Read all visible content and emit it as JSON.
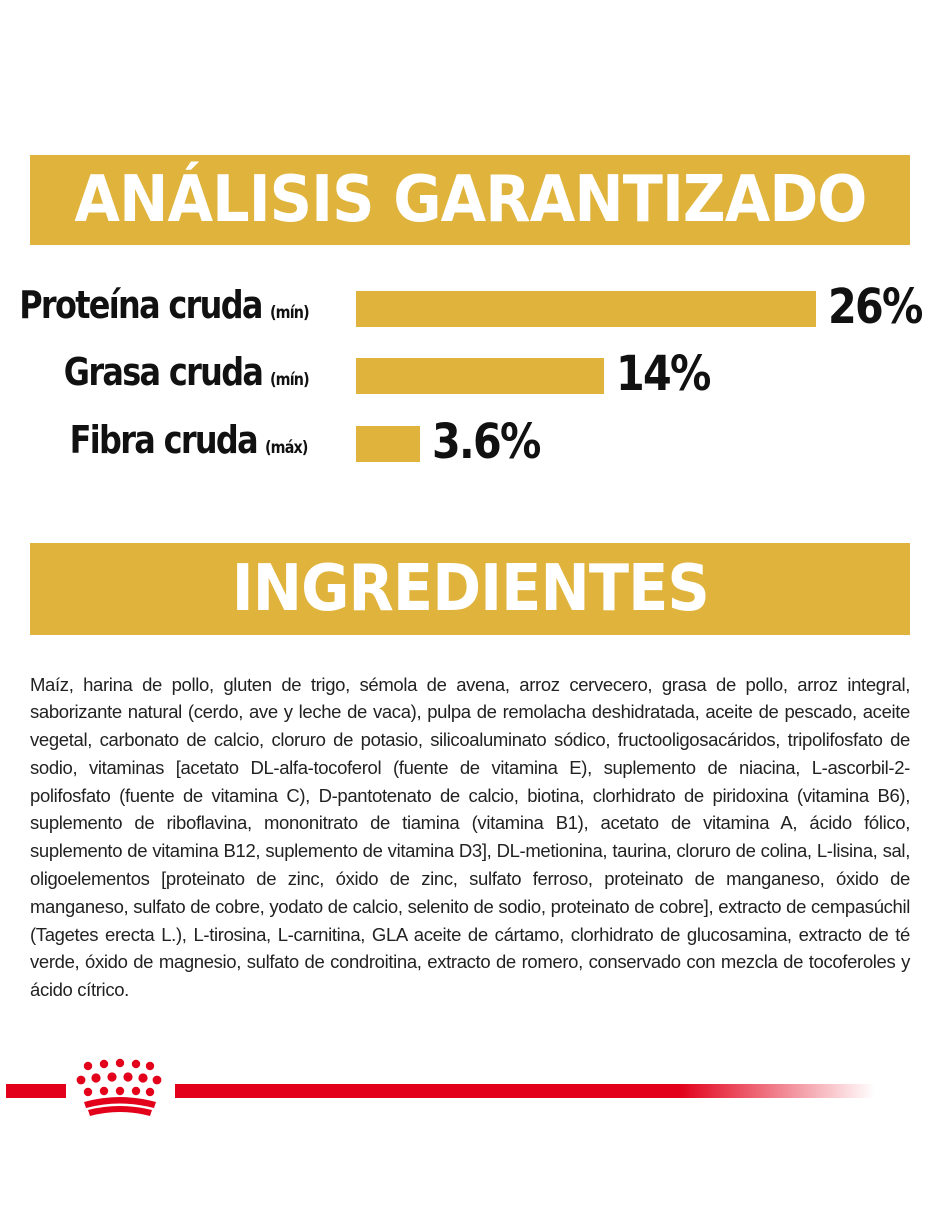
{
  "colors": {
    "gold": "#e0b43c",
    "red": "#e2001a",
    "text": "#111111"
  },
  "analysis": {
    "title": "ANÁLISIS GARANTIZADO",
    "rows": [
      {
        "label": "Proteína cruda",
        "qualifier": "(mín)",
        "value": "26%",
        "percent": 26
      },
      {
        "label": "Grasa cruda",
        "qualifier": "(mín)",
        "value": "14%",
        "percent": 14
      },
      {
        "label": "Fibra cruda",
        "qualifier": "(máx)",
        "value": "3.6%",
        "percent": 3.6
      }
    ]
  },
  "ingredients": {
    "title": "INGREDIENTES",
    "text": "Maíz, harina de pollo, gluten de trigo, sémola de avena, arroz cervecero, grasa de pollo, arroz integral, saborizante natural (cerdo, ave y leche de vaca), pulpa de remolacha deshidratada, aceite de pescado, aceite vegetal, carbonato de calcio, cloruro de potasio, silicoaluminato sódico, fructooligosacáridos, tripolifosfato de sodio, vitaminas [acetato DL-alfa-tocoferol (fuente de vitamina E), suplemento de niacina, L-ascorbil-2-polifosfato (fuente de vitamina C), D-pantotenato de calcio, biotina, clorhidrato de piridoxina (vitamina B6), suplemento de riboflavina, mononitrato de tiamina (vitamina B1), acetato de vitamina A, ácido fólico, suplemento de vitamina B12, suplemento de vitamina D3], DL-metionina, taurina, cloruro de colina, L-lisina, sal, oligoelementos [proteinato de zinc, óxido de zinc, sulfato ferroso, proteinato de manganeso, óxido de manganeso, sulfato de cobre, yodato de calcio, selenito de sodio, proteinato de cobre], extracto de cempasúchil (Tagetes erecta L.), L-tirosina, L-carnitina, GLA aceite de cártamo, clorhidrato de glucosamina, extracto de té verde, óxido de magnesio, sulfato de condroitina, extracto de romero, conservado con mezcla de tocoferoles y ácido cítrico."
  },
  "footer": {
    "logo_icon": "crown-logo-icon"
  }
}
